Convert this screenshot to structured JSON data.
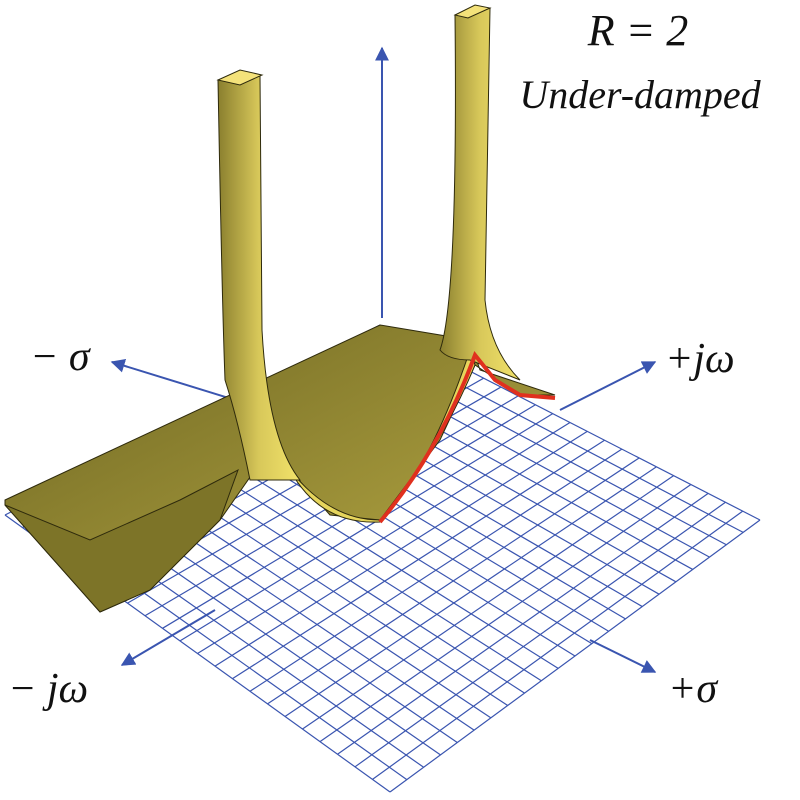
{
  "title": "R = 2",
  "subtitle": "Under-damped",
  "axes": {
    "neg_sigma": "− σ",
    "pos_jw": "+jω",
    "neg_jw": "− jω",
    "pos_sigma": "+σ"
  }
}
